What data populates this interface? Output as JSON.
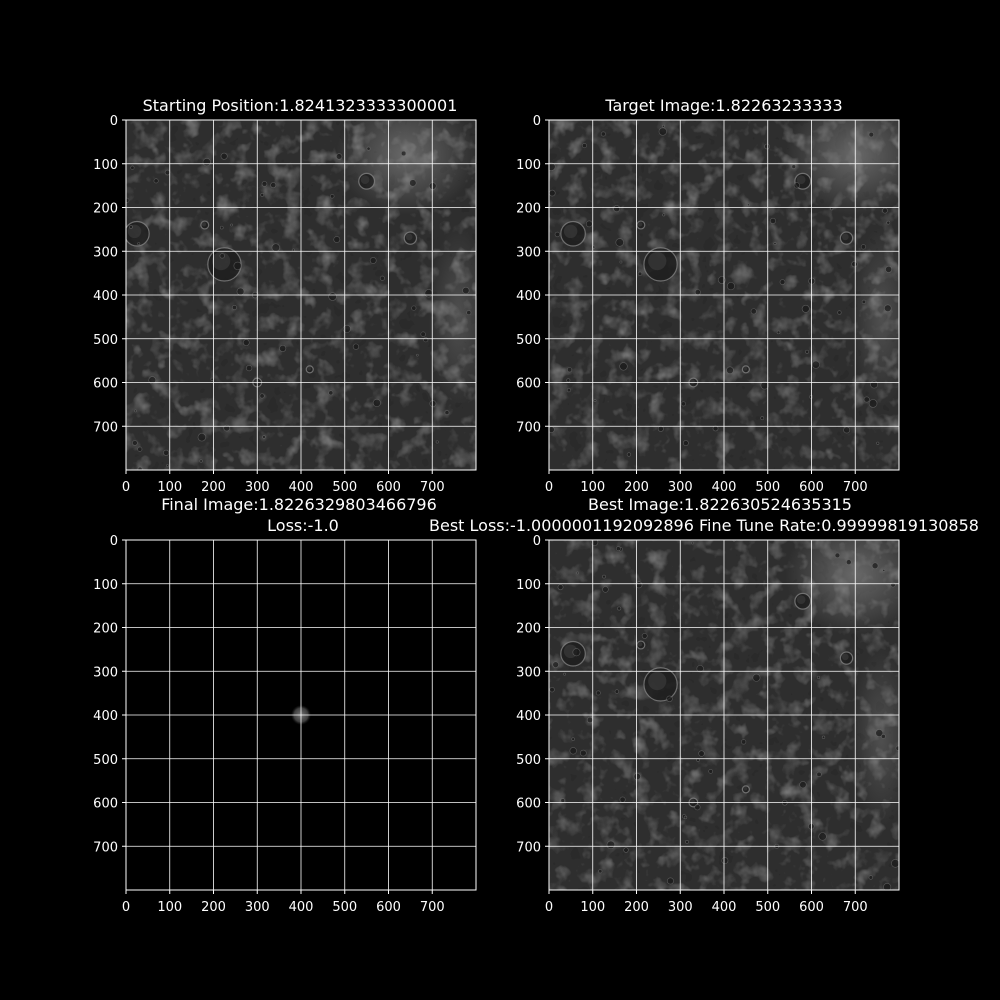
{
  "chart_data": [
    {
      "type": "image",
      "title": "Starting Position:1.8241323333300001",
      "content": "lunar-surface",
      "crater_offset_x": 0,
      "xticks": [
        0,
        100,
        200,
        300,
        400,
        500,
        600,
        700
      ],
      "yticks": [
        0,
        100,
        200,
        300,
        400,
        500,
        600,
        700
      ],
      "xlim": [
        0,
        800
      ],
      "ylim": [
        800,
        0
      ],
      "grid": true
    },
    {
      "type": "image",
      "title": "Target Image:1.82263233333",
      "content": "lunar-surface",
      "crater_offset_x": 0,
      "xticks": [
        0,
        100,
        200,
        300,
        400,
        500,
        600,
        700
      ],
      "yticks": [
        0,
        100,
        200,
        300,
        400,
        500,
        600,
        700
      ],
      "xlim": [
        0,
        800
      ],
      "ylim": [
        800,
        0
      ],
      "grid": true
    },
    {
      "type": "image",
      "title": "Final Image:1.8226329803466796",
      "subtitle": "Loss:-1.0",
      "content": "blank-with-spot",
      "spot": {
        "x": 400,
        "y": 400
      },
      "xticks": [
        0,
        100,
        200,
        300,
        400,
        500,
        600,
        700
      ],
      "yticks": [
        0,
        100,
        200,
        300,
        400,
        500,
        600,
        700
      ],
      "xlim": [
        0,
        800
      ],
      "ylim": [
        800,
        0
      ],
      "grid": true
    },
    {
      "type": "image",
      "title": "Best Image:1.822630524635315",
      "subtitle": "Best Loss:-1.0000001192092896 Fine Tune Rate:0.99999819130858",
      "content": "lunar-surface",
      "crater_offset_x": 0,
      "xticks": [
        0,
        100,
        200,
        300,
        400,
        500,
        600,
        700
      ],
      "yticks": [
        0,
        100,
        200,
        300,
        400,
        500,
        600,
        700
      ],
      "xlim": [
        0,
        800
      ],
      "ylim": [
        800,
        0
      ],
      "grid": true
    }
  ],
  "colors": {
    "background": "#000000",
    "grid": "#ffffff",
    "text": "#ffffff",
    "surface": "#2e2e2e"
  }
}
